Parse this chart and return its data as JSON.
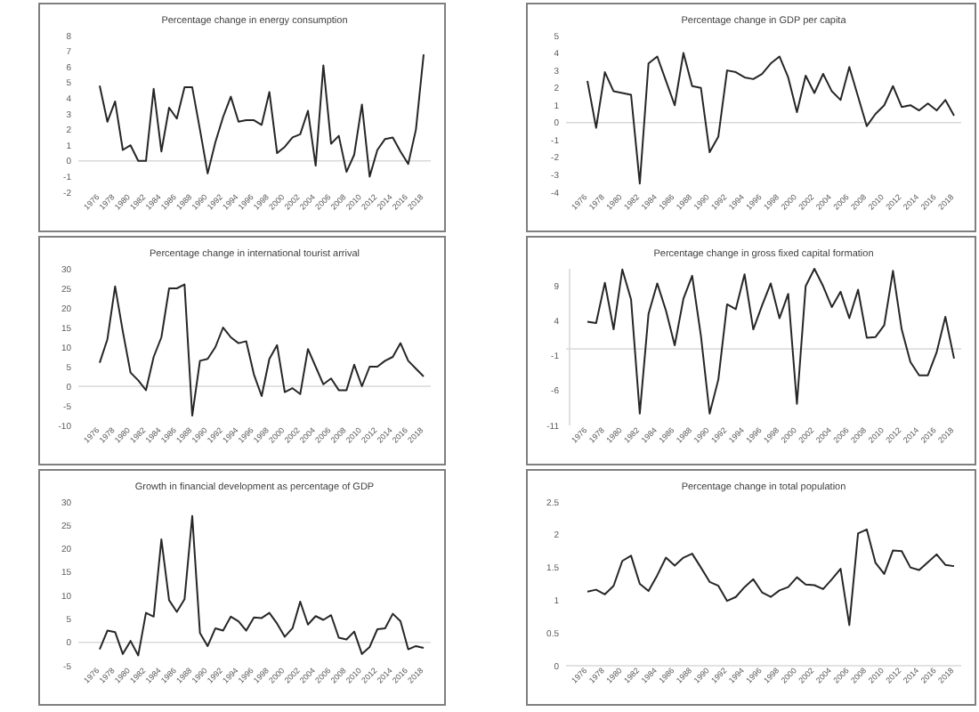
{
  "chart_data": [
    {
      "type": "line",
      "title": "Percentage change in energy consumption",
      "categories": [
        "1976",
        null,
        "1978",
        null,
        "1980",
        null,
        "1982",
        null,
        "1984",
        null,
        "1986",
        null,
        "1988",
        null,
        "1990",
        null,
        "1992",
        null,
        "1994",
        null,
        "1996",
        null,
        "1998",
        null,
        "2000",
        null,
        "2002",
        null,
        "2004",
        null,
        "2006",
        null,
        "2008",
        null,
        "2010",
        null,
        "2012",
        null,
        "2014",
        null,
        "2016",
        null,
        "2018"
      ],
      "series": [
        {
          "color": "#262626",
          "values": [
            4.8,
            2.5,
            3.8,
            0.7,
            1.0,
            0,
            0,
            4.6,
            0.6,
            3.4,
            2.7,
            4.7,
            4.7,
            2.0,
            -0.8,
            1.2,
            2.8,
            4.1,
            2.5,
            2.6,
            2.6,
            2.3,
            4.4,
            0.5,
            0.9,
            1.5,
            1.7,
            3.2,
            -0.3,
            6.1,
            1.1,
            1.6,
            -0.7,
            0.4,
            3.6,
            -1.0,
            0.7,
            1.4,
            1.5,
            0.6,
            -0.2,
            2.0,
            6.8
          ]
        }
      ],
      "ylim": [
        -2,
        8
      ],
      "yticks": [
        -2,
        -1,
        0,
        1,
        2,
        3,
        4,
        5,
        6,
        7,
        8
      ],
      "line_style": "solid"
    },
    {
      "type": "line",
      "title": "Percentage change in GDP per capita",
      "categories": [
        "1976",
        null,
        "1978",
        null,
        "1980",
        null,
        "1982",
        null,
        "1984",
        null,
        "1986",
        null,
        "1988",
        null,
        "1990",
        null,
        "1992",
        null,
        "1994",
        null,
        "1996",
        null,
        "1998",
        null,
        "2000",
        null,
        "2002",
        null,
        "2004",
        null,
        "2006",
        null,
        "2008",
        null,
        "2010",
        null,
        "2012",
        null,
        "2014",
        null,
        "2016",
        null,
        "2018"
      ],
      "series": [
        {
          "color": "#262626",
          "values": [
            2.4,
            -0.3,
            2.9,
            1.8,
            1.7,
            1.6,
            -3.5,
            3.4,
            3.8,
            2.4,
            1.0,
            4.0,
            2.1,
            2.0,
            -1.7,
            -0.8,
            3.0,
            2.9,
            2.6,
            2.5,
            2.8,
            3.4,
            3.8,
            2.6,
            0.6,
            2.7,
            1.7,
            2.8,
            1.8,
            1.3,
            3.2,
            1.5,
            -0.2,
            0.5,
            1.0,
            2.1,
            0.9,
            1.0,
            0.7,
            1.1,
            0.7,
            1.3,
            0.4
          ]
        }
      ],
      "ylim": [
        -4,
        5
      ],
      "yticks": [
        -4,
        -3,
        -2,
        -1,
        0,
        1,
        2,
        3,
        4,
        5
      ],
      "line_style": "solid"
    },
    {
      "type": "line",
      "title": "Percentage change in international tourist arrival",
      "categories": [
        "1976",
        null,
        "1978",
        null,
        "1980",
        null,
        "1982",
        null,
        "1984",
        null,
        "1986",
        null,
        "1988",
        null,
        "1990",
        null,
        "1992",
        null,
        "1994",
        null,
        "1996",
        null,
        "1998",
        null,
        "2000",
        null,
        "2002",
        null,
        "2004",
        null,
        "2006",
        null,
        "2008",
        null,
        "2010",
        null,
        "2012",
        null,
        "2014",
        null,
        "2016",
        null,
        "2018"
      ],
      "series": [
        {
          "color": "#262626",
          "values": [
            6,
            12,
            25.5,
            14,
            3.5,
            1.5,
            -1,
            7.5,
            12.5,
            25,
            25,
            26,
            -7.5,
            6.5,
            7,
            10,
            15,
            12.5,
            11,
            11.5,
            3,
            -2.5,
            7,
            10.5,
            -1.5,
            -0.5,
            -2,
            9.5,
            5,
            0.5,
            2,
            -1,
            -1,
            5.5,
            0,
            5,
            5,
            6.5,
            7.5,
            11,
            6.5,
            4.5,
            2.5
          ]
        }
      ],
      "ylim": [
        -10,
        30
      ],
      "yticks": [
        -10,
        -5,
        0,
        5,
        10,
        15,
        20,
        25,
        30
      ],
      "line_style": "solid"
    },
    {
      "type": "line",
      "title": "Percentage change in gross fixed capital formation",
      "categories": [
        "1976",
        null,
        "1978",
        null,
        "1980",
        null,
        "1982",
        null,
        "1984",
        null,
        "1986",
        null,
        "1988",
        null,
        "1990",
        null,
        "1992",
        null,
        "1994",
        null,
        "1996",
        null,
        "1998",
        null,
        "2000",
        null,
        "2002",
        null,
        "2004",
        null,
        "2006",
        null,
        "2008",
        null,
        "2010",
        null,
        "2012",
        null,
        "2014",
        null,
        "2016",
        null,
        "2018"
      ],
      "series": [
        {
          "color": "#262626",
          "values": [
            3.9,
            3.7,
            9.5,
            2.8,
            11.4,
            7.1,
            -9.3,
            5.0,
            9.4,
            5.5,
            0.5,
            7.2,
            10.5,
            1.9,
            -9.3,
            -4.4,
            6.4,
            5.7,
            10.7,
            2.8,
            6.2,
            9.4,
            4.4,
            7.9,
            -7.9,
            9,
            11.5,
            9,
            6,
            8.2,
            4.4,
            8.5,
            1.6,
            1.7,
            3.4,
            11.2,
            2.8,
            -1.9,
            -3.8,
            -3.8,
            -0.5,
            4.6,
            -1.4
          ]
        }
      ],
      "ylim": [
        -11,
        11.5
      ],
      "yticks": [
        -11,
        -6,
        -1,
        4,
        9
      ],
      "line_style": "solid"
    },
    {
      "type": "line",
      "title": "Growth in financial development as percentage of GDP",
      "categories": [
        "1976",
        null,
        "1978",
        null,
        "1980",
        null,
        "1982",
        null,
        "1984",
        null,
        "1986",
        null,
        "1988",
        null,
        "1990",
        null,
        "1992",
        null,
        "1994",
        null,
        "1996",
        null,
        "1998",
        null,
        "2000",
        null,
        "2002",
        null,
        "2004",
        null,
        "2006",
        null,
        "2008",
        null,
        "2010",
        null,
        "2012",
        null,
        "2014",
        null,
        "2016",
        null,
        "2018"
      ],
      "series": [
        {
          "color": "#262626",
          "values": [
            -1.5,
            2.5,
            2.2,
            -2.5,
            0.3,
            -2.8,
            6.3,
            5.5,
            22,
            9,
            6.5,
            9.2,
            27,
            2,
            -0.8,
            3,
            2.5,
            5.5,
            4.5,
            2.5,
            5.3,
            5.2,
            6.3,
            4,
            1.2,
            3,
            8.7,
            3.8,
            5.6,
            4.8,
            5.8,
            1,
            0.6,
            2.3,
            -2.5,
            -1,
            2.8,
            3,
            6.1,
            4.5,
            -1.5,
            -0.8,
            -1.2
          ]
        }
      ],
      "ylim": [
        -5,
        30
      ],
      "yticks": [
        -5,
        0,
        5,
        10,
        15,
        20,
        25,
        30
      ],
      "line_style": "solid"
    },
    {
      "type": "line",
      "title": "Percentage change in total population",
      "categories": [
        "1976",
        null,
        "1978",
        null,
        "1980",
        null,
        "1982",
        null,
        "1984",
        null,
        "1986",
        null,
        "1988",
        null,
        "1990",
        null,
        "1992",
        null,
        "1994",
        null,
        "1996",
        null,
        "1998",
        null,
        "2000",
        null,
        "2002",
        null,
        "2004",
        null,
        "2006",
        null,
        "2008",
        null,
        "2010",
        null,
        "2012",
        null,
        "2014",
        null,
        "2016",
        null,
        "2018"
      ],
      "series": [
        {
          "color": "#262626",
          "values": [
            1.13,
            1.16,
            1.09,
            1.22,
            1.6,
            1.68,
            1.25,
            1.14,
            1.38,
            1.65,
            1.53,
            1.65,
            1.71,
            1.5,
            1.28,
            1.22,
            0.99,
            1.05,
            1.2,
            1.32,
            1.12,
            1.05,
            1.15,
            1.2,
            1.35,
            1.24,
            1.23,
            1.17,
            1.32,
            1.48,
            0.62,
            2.02,
            2.08,
            1.57,
            1.4,
            1.76,
            1.75,
            1.5,
            1.46,
            1.58,
            1.7,
            1.54,
            1.52
          ]
        }
      ],
      "ylim": [
        0,
        2.5
      ],
      "yticks": [
        0,
        0.5,
        1,
        1.5,
        2,
        2.5
      ],
      "line_style": "solid"
    }
  ]
}
